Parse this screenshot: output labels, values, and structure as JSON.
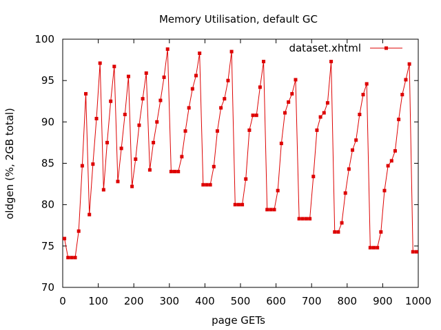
{
  "chart_data": {
    "type": "line",
    "title": "Memory Utilisation, default GC",
    "xlabel": "page GETs",
    "ylabel": "oldgen (%, 2GB total)",
    "xlim": [
      0,
      1000
    ],
    "ylim": [
      70,
      100
    ],
    "x_ticks": [
      "0",
      "100",
      "200",
      "300",
      "400",
      "500",
      "600",
      "700",
      "800",
      "900",
      "1000"
    ],
    "y_ticks": [
      "70",
      "75",
      "80",
      "85",
      "90",
      "95",
      "100"
    ],
    "grid": false,
    "legend_position": "top-right",
    "series": [
      {
        "name": "dataset.xhtml",
        "color": "#dd0000",
        "marker": "square",
        "x": [
          5,
          15,
          25,
          35,
          45,
          55,
          65,
          75,
          85,
          95,
          105,
          115,
          125,
          135,
          145,
          155,
          165,
          175,
          185,
          195,
          205,
          215,
          225,
          235,
          245,
          255,
          265,
          275,
          285,
          295,
          305,
          315,
          325,
          335,
          345,
          355,
          365,
          375,
          385,
          395,
          405,
          415,
          425,
          435,
          445,
          455,
          465,
          475,
          485,
          495,
          505,
          515,
          525,
          535,
          545,
          555,
          565,
          575,
          585,
          595,
          605,
          615,
          625,
          635,
          645,
          655,
          665,
          675,
          685,
          695,
          705,
          715,
          725,
          735,
          745,
          755,
          765,
          775,
          785,
          795,
          805,
          815,
          825,
          835,
          845,
          855,
          865,
          875,
          885,
          895,
          905,
          915,
          925,
          935,
          945,
          955,
          965,
          975,
          985,
          995
        ],
        "y": [
          75.9,
          73.6,
          73.6,
          73.6,
          76.8,
          84.7,
          93.4,
          78.8,
          84.9,
          90.4,
          97.1,
          81.8,
          87.5,
          92.5,
          96.7,
          82.8,
          86.8,
          90.9,
          95.5,
          82.2,
          85.5,
          89.6,
          92.8,
          95.9,
          84.2,
          87.5,
          90.0,
          92.6,
          95.4,
          98.8,
          84.0,
          84.0,
          84.0,
          85.8,
          88.9,
          91.7,
          94.0,
          95.6,
          98.3,
          82.4,
          82.4,
          82.4,
          84.6,
          88.9,
          91.7,
          92.8,
          95.0,
          98.5,
          80.0,
          80.0,
          80.0,
          83.1,
          89.0,
          90.8,
          90.8,
          94.2,
          97.3,
          79.4,
          79.4,
          79.4,
          81.7,
          87.4,
          91.1,
          92.4,
          93.4,
          95.1,
          78.3,
          78.3,
          78.3,
          78.3,
          83.4,
          89.0,
          90.6,
          91.1,
          92.3,
          97.3,
          76.7,
          76.7,
          77.8,
          81.4,
          84.3,
          86.6,
          87.8,
          90.9,
          93.3,
          94.6,
          74.8,
          74.8,
          74.8,
          76.7,
          81.7,
          84.7,
          85.3,
          86.5,
          90.3,
          93.3,
          95.1,
          97.0,
          74.3,
          74.3
        ]
      }
    ]
  }
}
